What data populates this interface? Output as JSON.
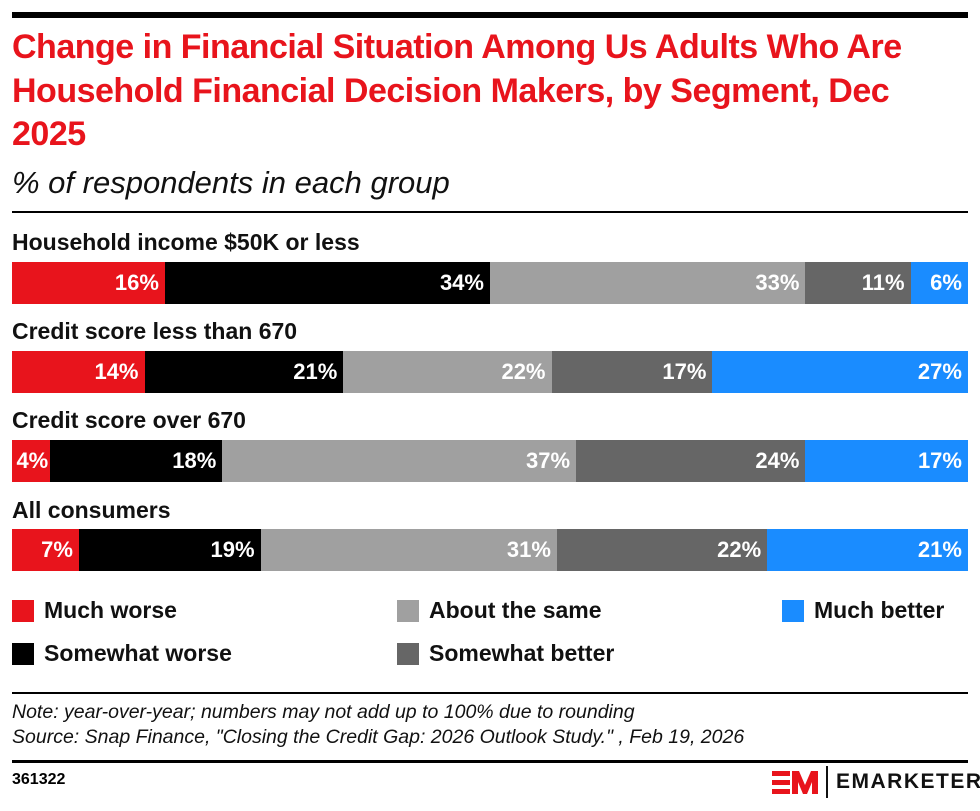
{
  "chart_data": {
    "type": "bar",
    "orientation": "horizontal-stacked-100",
    "title": "Change in Financial Situation Among Us Adults Who Are Household Financial Decision Makers, by Segment, Dec 2025",
    "subtitle": "% of respondents in each group",
    "categories": [
      "Household income $50K or less",
      "Credit score less than 670",
      "Credit score over 670",
      "All consumers"
    ],
    "series": [
      {
        "name": "Much worse",
        "color": "#e8141c",
        "values": [
          16,
          14,
          4,
          7
        ]
      },
      {
        "name": "Somewhat worse",
        "color": "#000000",
        "values": [
          34,
          21,
          18,
          19
        ]
      },
      {
        "name": "About the same",
        "color": "#a0a0a0",
        "values": [
          33,
          22,
          37,
          31
        ]
      },
      {
        "name": "Somewhat better",
        "color": "#666666",
        "values": [
          11,
          17,
          24,
          22
        ]
      },
      {
        "name": "Much better",
        "color": "#1a8cff",
        "values": [
          6,
          27,
          17,
          21
        ]
      }
    ],
    "value_suffix": "%",
    "legend_position": "bottom"
  },
  "footer": {
    "note": "Note: year-over-year; numbers may not add up to 100% due to rounding",
    "source": "Source: Snap Finance, \"Closing the Credit Gap: 2026 Outlook Study.\" , Feb 19, 2026",
    "chart_id": "361322",
    "brand": "EMARKETER"
  }
}
